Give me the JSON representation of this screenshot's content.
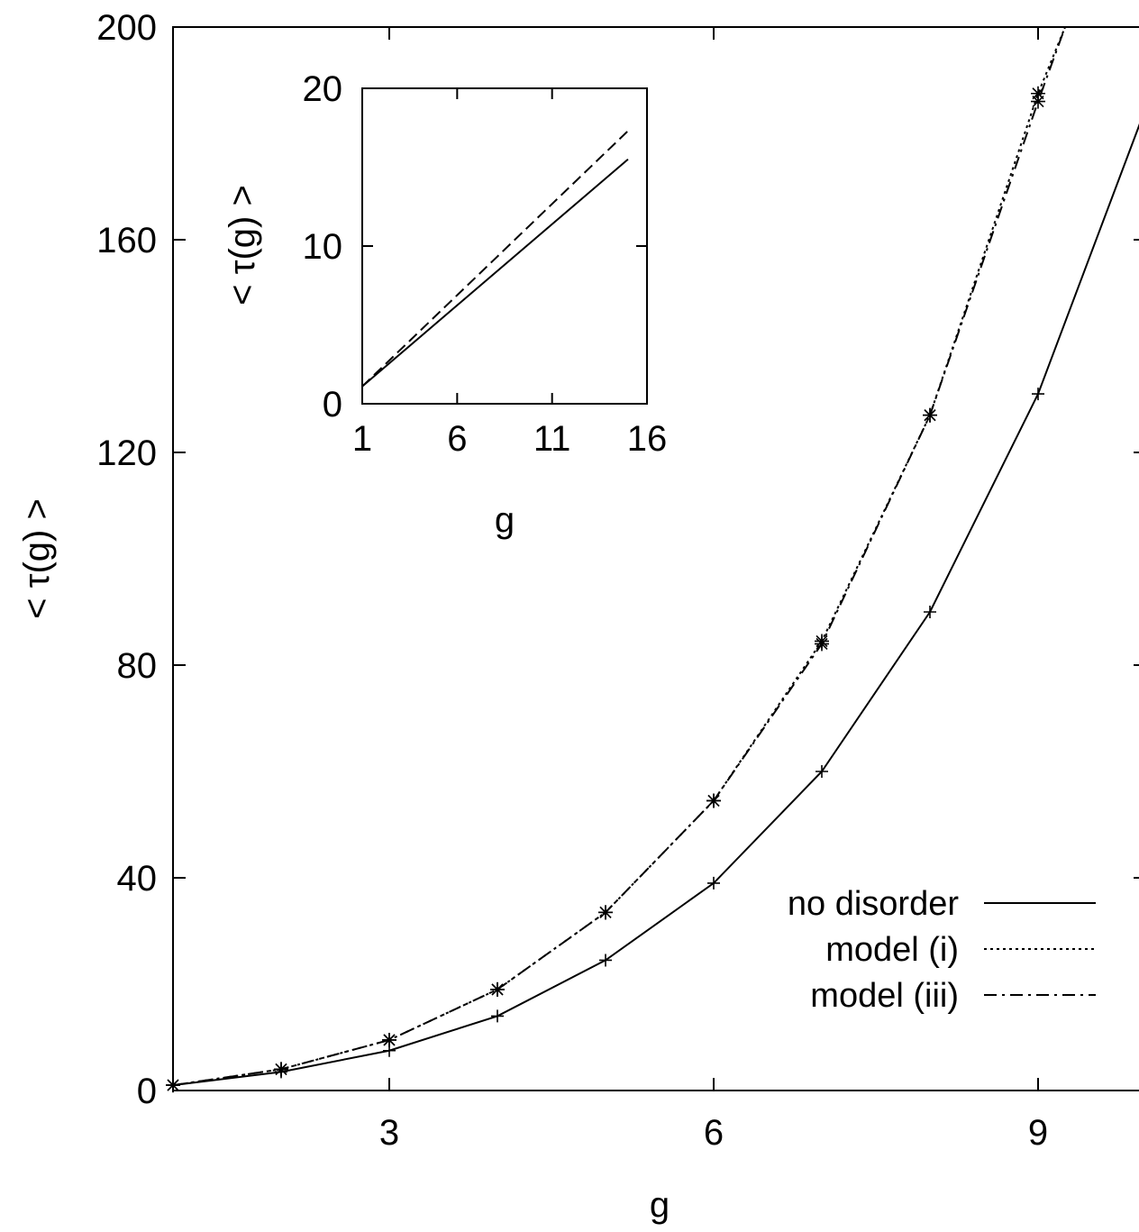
{
  "chart_data": [
    {
      "type": "line",
      "title": "",
      "xlabel": "g",
      "ylabel": "< τ(g) >",
      "xlim": [
        1,
        10
      ],
      "ylim": [
        0,
        200
      ],
      "xticks": [
        3,
        6,
        9
      ],
      "yticks": [
        0,
        40,
        80,
        120,
        160,
        200
      ],
      "legend_position": "bottom-right",
      "grid": false,
      "series": [
        {
          "name": "no disorder",
          "style": "solid",
          "marker": "plus",
          "x": [
            1,
            2,
            3,
            4,
            5,
            6,
            7,
            8,
            9,
            10
          ],
          "y": [
            1,
            3.5,
            7.5,
            14,
            24.5,
            39,
            60,
            90,
            131,
            185
          ]
        },
        {
          "name": "model (i)",
          "style": "dotted",
          "marker": "star",
          "x": [
            1,
            2,
            3,
            4,
            5,
            6,
            7,
            8,
            9,
            9.25
          ],
          "y": [
            1,
            4,
            9.5,
            19,
            33.5,
            54.5,
            84.5,
            127,
            187.5,
            200
          ]
        },
        {
          "name": "model (iii)",
          "style": "dash-dot",
          "marker": "star",
          "x": [
            1,
            2,
            3,
            4,
            5,
            6,
            7,
            8,
            9,
            9.25
          ],
          "y": [
            1,
            4,
            9.5,
            19,
            33.5,
            54.5,
            84,
            127,
            186,
            200
          ]
        }
      ]
    },
    {
      "type": "line",
      "title": "",
      "xlabel": "g",
      "ylabel": "< τ(g) >",
      "xlim": [
        1,
        16
      ],
      "ylim": [
        0,
        20
      ],
      "xticks": [
        1,
        6,
        11,
        16
      ],
      "yticks": [
        0,
        10,
        20
      ],
      "grid": false,
      "series": [
        {
          "name": "",
          "style": "solid",
          "x": [
            1,
            15
          ],
          "y": [
            1.1,
            15.5
          ]
        },
        {
          "name": "",
          "style": "dashed",
          "x": [
            1,
            15
          ],
          "y": [
            1.1,
            17.3
          ]
        }
      ]
    }
  ]
}
